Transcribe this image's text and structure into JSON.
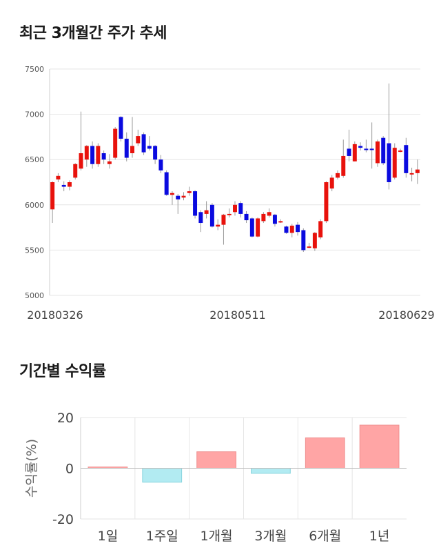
{
  "titles": {
    "price_trend": "최근 3개월간 주가 추세",
    "period_return": "기간별 수익률"
  },
  "chart_data": [
    {
      "type": "candlestick",
      "title": "",
      "ylim": [
        5000,
        7500
      ],
      "yticks": [
        5000,
        5500,
        6000,
        6500,
        7000,
        7500
      ],
      "xtick_labels": [
        "20180326",
        "20180511",
        "20180629"
      ],
      "grid": true,
      "colors": {
        "up": "#e8120c",
        "down": "#0a0adf"
      },
      "candles": [
        [
          5950,
          6250,
          5800,
          6260
        ],
        [
          6280,
          6320,
          6250,
          6350
        ],
        [
          6220,
          6200,
          6150,
          6260
        ],
        [
          6200,
          6250,
          6160,
          6270
        ],
        [
          6300,
          6450,
          6280,
          6460
        ],
        [
          6400,
          6570,
          6380,
          7030
        ],
        [
          6500,
          6650,
          6420,
          6660
        ],
        [
          6650,
          6450,
          6400,
          6700
        ],
        [
          6450,
          6650,
          6420,
          6680
        ],
        [
          6570,
          6500,
          6450,
          6600
        ],
        [
          6450,
          6480,
          6400,
          6560
        ],
        [
          6520,
          6840,
          6500,
          6860
        ],
        [
          6970,
          6730,
          6700,
          6980
        ],
        [
          6730,
          6520,
          6480,
          6800
        ],
        [
          6570,
          6650,
          6520,
          6970
        ],
        [
          6680,
          6760,
          6650,
          6830
        ],
        [
          6780,
          6580,
          6550,
          6800
        ],
        [
          6650,
          6620,
          6600,
          6760
        ],
        [
          6650,
          6500,
          6450,
          6660
        ],
        [
          6500,
          6380,
          6350,
          6550
        ],
        [
          6360,
          6110,
          6100,
          6380
        ],
        [
          6110,
          6130,
          6000,
          6150
        ],
        [
          6100,
          6060,
          5900,
          6120
        ],
        [
          6080,
          6100,
          6050,
          6140
        ],
        [
          6130,
          6150,
          6100,
          6200
        ],
        [
          6150,
          5880,
          5850,
          6160
        ],
        [
          5920,
          5800,
          5700,
          5940
        ],
        [
          5900,
          5940,
          5850,
          6040
        ],
        [
          6000,
          5760,
          5750,
          6020
        ],
        [
          5760,
          5780,
          5720,
          5840
        ],
        [
          5780,
          5890,
          5560,
          5900
        ],
        [
          5900,
          5900,
          5860,
          5960
        ],
        [
          5920,
          6000,
          5880,
          6040
        ],
        [
          6020,
          5900,
          5860,
          6040
        ],
        [
          5900,
          5830,
          5800,
          5930
        ],
        [
          5850,
          5650,
          5640,
          5860
        ],
        [
          5650,
          5850,
          5640,
          5860
        ],
        [
          5820,
          5900,
          5800,
          5920
        ],
        [
          5880,
          5920,
          5860,
          5960
        ],
        [
          5890,
          5790,
          5760,
          5900
        ],
        [
          5820,
          5820,
          5800,
          5840
        ],
        [
          5760,
          5690,
          5680,
          5770
        ],
        [
          5690,
          5770,
          5640,
          5790
        ],
        [
          5780,
          5700,
          5660,
          5810
        ],
        [
          5720,
          5500,
          5480,
          5740
        ],
        [
          5540,
          5540,
          5520,
          5580
        ],
        [
          5520,
          5690,
          5490,
          5700
        ],
        [
          5640,
          5820,
          5620,
          5840
        ],
        [
          5820,
          6250,
          5800,
          6260
        ],
        [
          6180,
          6300,
          6150,
          6330
        ],
        [
          6300,
          6350,
          6280,
          6380
        ],
        [
          6320,
          6540,
          6300,
          6720
        ],
        [
          6620,
          6540,
          6480,
          6830
        ],
        [
          6480,
          6670,
          6480,
          6700
        ],
        [
          6650,
          6630,
          6600,
          6690
        ],
        [
          6620,
          6610,
          6580,
          6720
        ],
        [
          6620,
          6610,
          6400,
          6910
        ],
        [
          6460,
          6700,
          6420,
          6720
        ],
        [
          6740,
          6460,
          6440,
          6760
        ],
        [
          6680,
          6250,
          6170,
          7340
        ],
        [
          6300,
          6630,
          6280,
          6680
        ],
        [
          6600,
          6600,
          6580,
          6620
        ],
        [
          6660,
          6350,
          6300,
          6740
        ],
        [
          6350,
          6350,
          6260,
          6410
        ],
        [
          6350,
          6390,
          6230,
          6500
        ]
      ]
    },
    {
      "type": "bar",
      "title": "",
      "ylabel": "수익률(%)",
      "ylim": [
        -20,
        20
      ],
      "yticks": [
        -20,
        0,
        20
      ],
      "categories": [
        "1일",
        "1주일",
        "1개월",
        "3개월",
        "6개월",
        "1년"
      ],
      "values": [
        0.5,
        -5.5,
        6.5,
        -2.0,
        12.0,
        17.0
      ],
      "grid": true,
      "colors": {
        "positive": "#ffa5a5",
        "negative": "#b2ebf2"
      }
    }
  ]
}
